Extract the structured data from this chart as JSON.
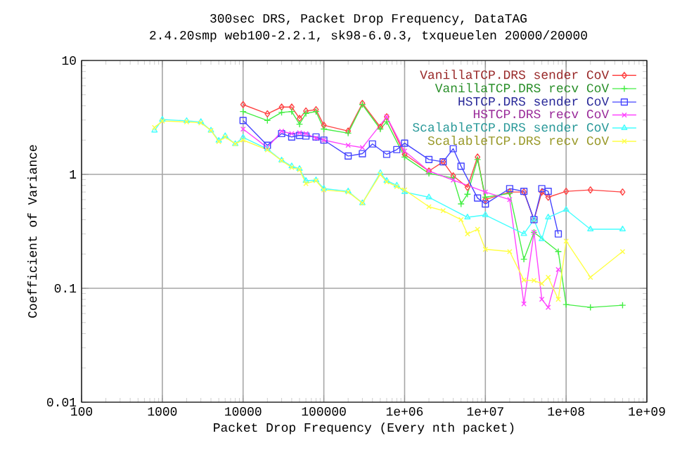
{
  "chart_data": {
    "type": "line",
    "title": "300sec DRS, Packet Drop Frequency, DataTAG",
    "subtitle": "2.4.20smp web100-2.2.1, sk98-6.0.3, txqueuelen 20000/20000",
    "xlabel": "Packet Drop Frequency (Every nth packet)",
    "ylabel": "Coefficient of Variance",
    "log": "xy",
    "grid": true,
    "legend": "top right",
    "xlim": [
      100,
      1000000000
    ],
    "ylim": [
      0.01,
      10
    ],
    "xticks": [
      100,
      1000,
      10000,
      100000,
      {
        "value": 1000000,
        "label": "1e+06"
      },
      {
        "value": 10000000,
        "label": "1e+07"
      },
      {
        "value": 100000000,
        "label": "1e+08"
      },
      {
        "value": 1000000000,
        "label": "1e+09"
      }
    ],
    "yticks": [
      0.01,
      0.1,
      1,
      10
    ],
    "series": [
      {
        "name": "VanillaTCP.DRS sender CoV",
        "color": "#ff4444",
        "marker": "diamond",
        "x": [
          10000,
          20000,
          30000,
          40000,
          50000,
          60000,
          80000,
          100000,
          200000,
          300000,
          500000,
          600000,
          1000000,
          2000000,
          3000000,
          4000000,
          6000000,
          8000000,
          10000000,
          20000000,
          30000000,
          40000000,
          50000000,
          60000000,
          100000000,
          200000000,
          500000000
        ],
        "values": [
          4.1,
          3.4,
          3.9,
          3.9,
          3.1,
          3.6,
          3.7,
          2.7,
          2.4,
          4.2,
          2.6,
          3.2,
          1.5,
          1.07,
          1.29,
          0.97,
          0.77,
          1.42,
          0.6,
          0.7,
          0.7,
          0.4,
          0.7,
          0.63,
          0.71,
          0.73,
          0.7
        ]
      },
      {
        "name": "VanillaTCP.DRS recv CoV",
        "color": "#44ee44",
        "marker": "plus",
        "x": [
          10000,
          20000,
          30000,
          40000,
          50000,
          60000,
          80000,
          100000,
          200000,
          300000,
          500000,
          600000,
          1000000,
          2000000,
          4000000,
          5000000,
          6000000,
          8000000,
          10000000,
          20000000,
          30000000,
          40000000,
          80000000,
          100000000,
          200000000,
          500000000
        ],
        "values": [
          3.56,
          2.97,
          3.5,
          3.56,
          2.76,
          3.43,
          3.56,
          2.5,
          2.3,
          4.1,
          2.5,
          2.9,
          1.42,
          1.02,
          0.93,
          0.55,
          0.67,
          1.35,
          0.63,
          0.68,
          0.18,
          0.31,
          0.21,
          0.072,
          0.068,
          0.071
        ]
      },
      {
        "name": "HSTCP.DRS sender CoV",
        "color": "#4444ff",
        "marker": "square",
        "x": [
          10000,
          20000,
          30000,
          40000,
          50000,
          60000,
          80000,
          100000,
          200000,
          300000,
          400000,
          600000,
          800000,
          1000000,
          2000000,
          3000000,
          4000000,
          5000000,
          8000000,
          10000000,
          20000000,
          30000000,
          40000000,
          50000000,
          60000000,
          80000000
        ],
        "values": [
          2.97,
          1.8,
          2.28,
          2.13,
          2.2,
          2.17,
          2.13,
          2.0,
          1.45,
          1.52,
          1.85,
          1.5,
          1.65,
          1.88,
          1.35,
          1.29,
          1.68,
          1.18,
          0.62,
          0.55,
          0.75,
          0.71,
          0.4,
          0.75,
          0.71,
          0.3
        ]
      },
      {
        "name": "HSTCP.DRS recv CoV",
        "color": "#ff44ff",
        "marker": "cross",
        "x": [
          10000,
          20000,
          30000,
          40000,
          50000,
          60000,
          80000,
          100000,
          200000,
          300000,
          600000,
          1000000,
          2000000,
          4000000,
          10000000,
          20000000,
          30000000,
          40000000,
          50000000,
          60000000,
          80000000
        ],
        "values": [
          2.5,
          1.72,
          2.39,
          2.28,
          2.32,
          2.28,
          2.08,
          2.0,
          1.8,
          1.72,
          3.2,
          1.6,
          1.07,
          0.89,
          0.7,
          0.6,
          0.073,
          0.31,
          0.08,
          0.068,
          0.146
        ]
      },
      {
        "name": "ScalableTCP.DRS sender CoV",
        "color": "#44ffff",
        "marker": "triangle",
        "x": [
          800,
          1000,
          2000,
          3000,
          4000,
          5000,
          6000,
          8000,
          10000,
          20000,
          30000,
          40000,
          50000,
          60000,
          80000,
          100000,
          200000,
          300000,
          500000,
          600000,
          800000,
          1000000,
          2000000,
          6000000,
          10000000,
          30000000,
          40000000,
          50000000,
          60000000,
          100000000,
          200000000,
          500000000
        ],
        "values": [
          2.43,
          3.03,
          2.95,
          2.89,
          2.43,
          1.98,
          2.17,
          1.85,
          2.11,
          1.67,
          1.33,
          1.18,
          1.12,
          0.88,
          0.89,
          0.75,
          0.71,
          0.56,
          1.03,
          0.88,
          0.8,
          0.7,
          0.63,
          0.42,
          0.44,
          0.3,
          0.4,
          0.27,
          0.42,
          0.49,
          0.33,
          0.33
        ]
      },
      {
        "name": "ScalableTCP.DRS recv CoV",
        "color": "#ffff44",
        "marker": "cross",
        "x": [
          800,
          1000,
          2000,
          3000,
          4000,
          5000,
          6000,
          8000,
          10000,
          20000,
          30000,
          40000,
          50000,
          60000,
          80000,
          100000,
          200000,
          300000,
          500000,
          600000,
          800000,
          1000000,
          2000000,
          3000000,
          5000000,
          6000000,
          8000000,
          10000000,
          20000000,
          30000000,
          40000000,
          50000000,
          60000000,
          80000000,
          100000000,
          200000000,
          500000000
        ],
        "values": [
          2.58,
          2.94,
          2.89,
          2.83,
          2.43,
          1.94,
          2.13,
          1.85,
          2.0,
          1.64,
          1.32,
          1.15,
          1.1,
          0.83,
          0.88,
          0.73,
          0.7,
          0.56,
          1.0,
          0.86,
          0.78,
          0.73,
          0.52,
          0.48,
          0.4,
          0.3,
          0.33,
          0.22,
          0.21,
          0.118,
          0.117,
          0.11,
          0.125,
          0.08,
          0.26,
          0.125,
          0.21
        ]
      }
    ]
  }
}
